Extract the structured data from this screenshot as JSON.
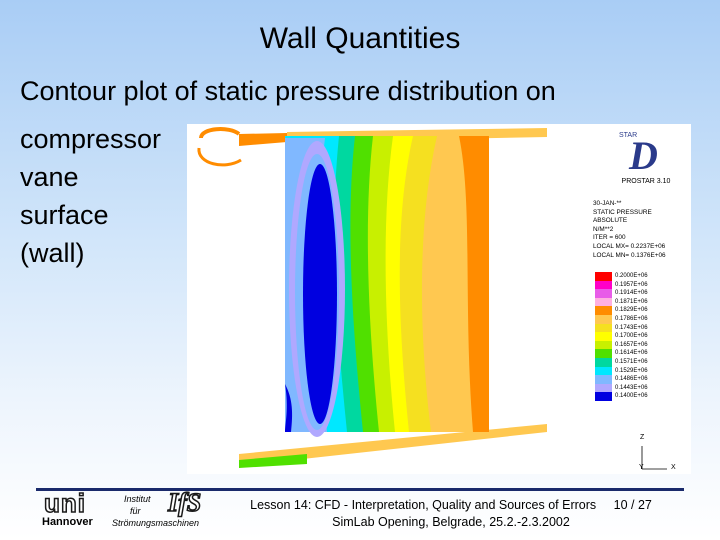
{
  "slide": {
    "title": "Wall Quantities",
    "subtitle": "Contour plot of static pressure distribution on",
    "side_lines": [
      "compressor",
      "vane",
      "surface",
      "(wall)"
    ]
  },
  "plot": {
    "logo_text": "STAR",
    "logo_letter": "D",
    "product": "PROSTAR 3.10",
    "info_lines": [
      "30-JAN-**",
      "STATIC PRESSURE",
      "ABSOLUTE",
      "N/M**2",
      "ITER =    600",
      "LOCAL MX= 0.2237E+06",
      "LOCAL MN= 0.1376E+06"
    ],
    "legend": [
      {
        "label": "0.2000E+06",
        "color": "#ff0000"
      },
      {
        "label": "0.1957E+06",
        "color": "#ff00c8"
      },
      {
        "label": "0.1914E+06",
        "color": "#e85ce8"
      },
      {
        "label": "0.1871E+06",
        "color": "#ffb0e0"
      },
      {
        "label": "0.1829E+06",
        "color": "#ff8c00"
      },
      {
        "label": "0.1786E+06",
        "color": "#ffc850"
      },
      {
        "label": "0.1743E+06",
        "color": "#f5e020"
      },
      {
        "label": "0.1700E+06",
        "color": "#ffff00"
      },
      {
        "label": "0.1657E+06",
        "color": "#c8f000"
      },
      {
        "label": "0.1614E+06",
        "color": "#50e000"
      },
      {
        "label": "0.1571E+06",
        "color": "#00d8a0"
      },
      {
        "label": "0.1529E+06",
        "color": "#00e8ff"
      },
      {
        "label": "0.1486E+06",
        "color": "#80b8ff"
      },
      {
        "label": "0.1443E+06",
        "color": "#b0a8ff"
      },
      {
        "label": "0.1400E+06",
        "color": "#0000e0"
      }
    ],
    "axis_z": "Z",
    "axis_y": "Y",
    "axis_x": "X"
  },
  "footer": {
    "logo_uni": "uni",
    "logo_city": "Hannover",
    "logo_institut": "Institut",
    "logo_fuer": "für",
    "logo_ifs": "IfS",
    "logo_dept": "Strömungsmaschinen",
    "line1": "Lesson 14: CFD - Interpretation, Quality and Sources of Errors",
    "page": "10 / 27",
    "line2": "SimLab Opening, Belgrade, 25.2.-2.3.2002"
  }
}
